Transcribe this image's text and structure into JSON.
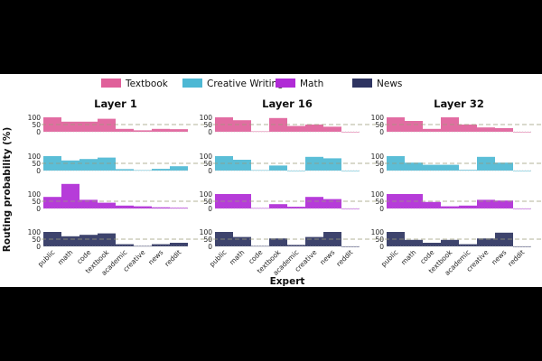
{
  "chart_data": {
    "type": "bar",
    "ylabel": "Routing probability (%)",
    "xlabel": "Expert",
    "categories": [
      "public",
      "math",
      "code",
      "textbook",
      "academic",
      "creative",
      "news",
      "reddit"
    ],
    "legend": [
      {
        "name": "Textbook",
        "color": "#e0609a"
      },
      {
        "name": "Creative Writing",
        "color": "#4db8d4"
      },
      {
        "name": "Math",
        "color": "#b02bd6"
      },
      {
        "name": "News",
        "color": "#2e3461"
      }
    ],
    "yticks": [
      0,
      50,
      100
    ],
    "ylim": [
      0,
      200
    ],
    "reference_line": 50,
    "panels": [
      {
        "title": "Layer 1",
        "series": [
          {
            "name": "Textbook",
            "values": [
              100,
              70,
              70,
              90,
              20,
              10,
              20,
              18
            ]
          },
          {
            "name": "Creative Writing",
            "values": [
              100,
              70,
              80,
              90,
              10,
              3,
              12,
              30
            ]
          },
          {
            "name": "Math",
            "values": [
              80,
              170,
              60,
              40,
              20,
              15,
              8,
              5
            ]
          },
          {
            "name": "News",
            "values": [
              100,
              70,
              80,
              90,
              15,
              3,
              15,
              25
            ]
          }
        ]
      },
      {
        "title": "Layer 16",
        "series": [
          {
            "name": "Textbook",
            "values": [
              100,
              80,
              3,
              95,
              40,
              50,
              35,
              0
            ]
          },
          {
            "name": "Creative Writing",
            "values": [
              100,
              75,
              3,
              35,
              0,
              95,
              85,
              0
            ]
          },
          {
            "name": "Math",
            "values": [
              100,
              100,
              3,
              30,
              12,
              80,
              65,
              0
            ]
          },
          {
            "name": "News",
            "values": [
              100,
              65,
              3,
              55,
              10,
              65,
              100,
              0
            ]
          }
        ]
      },
      {
        "title": "Layer 32",
        "series": [
          {
            "name": "Textbook",
            "values": [
              100,
              75,
              20,
              100,
              50,
              30,
              25,
              0
            ]
          },
          {
            "name": "Creative Writing",
            "values": [
              100,
              55,
              40,
              40,
              5,
              95,
              55,
              0
            ]
          },
          {
            "name": "Math",
            "values": [
              100,
              100,
              45,
              15,
              20,
              60,
              55,
              0
            ]
          },
          {
            "name": "News",
            "values": [
              100,
              45,
              25,
              45,
              15,
              55,
              95,
              0
            ]
          }
        ]
      }
    ]
  }
}
